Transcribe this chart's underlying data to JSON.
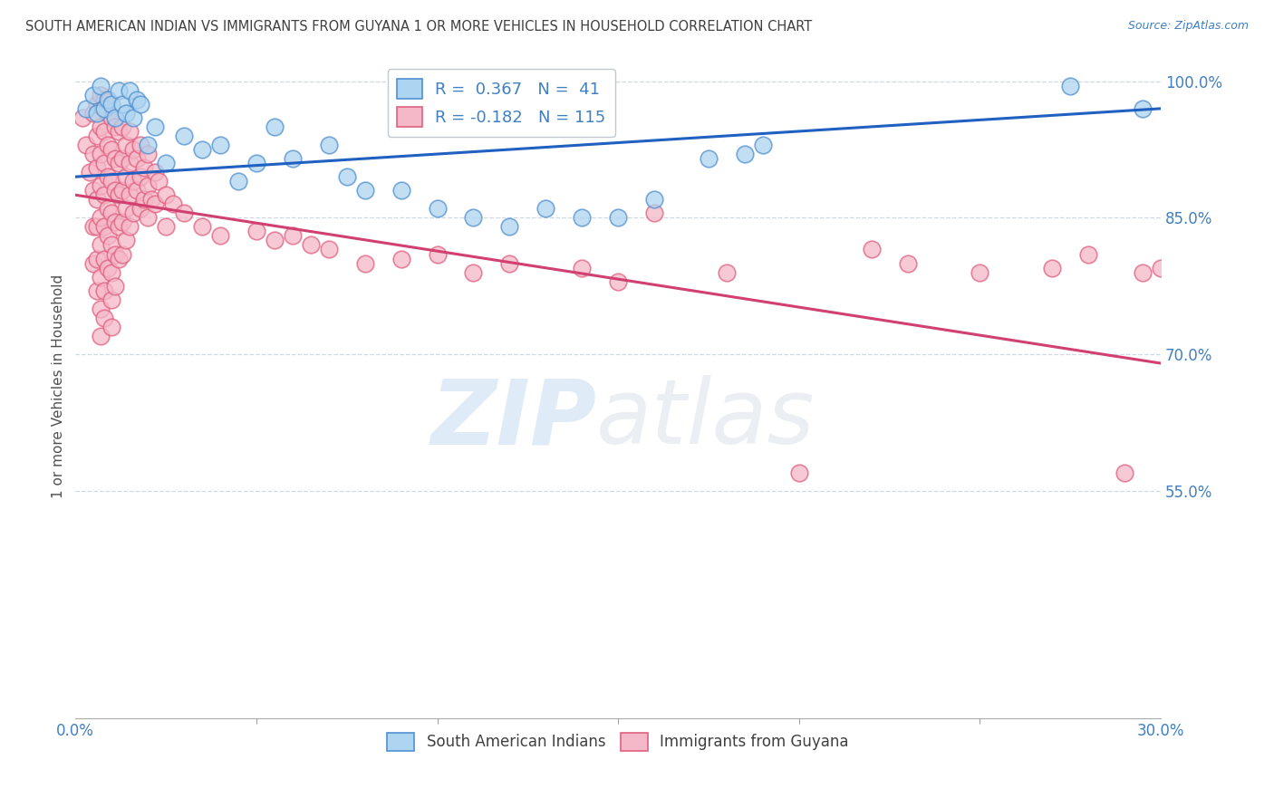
{
  "title": "SOUTH AMERICAN INDIAN VS IMMIGRANTS FROM GUYANA 1 OR MORE VEHICLES IN HOUSEHOLD CORRELATION CHART",
  "source": "Source: ZipAtlas.com",
  "ylabel_label": "1 or more Vehicles in Household",
  "legend_blue_label": "South American Indians",
  "legend_pink_label": "Immigrants from Guyana",
  "R_blue": 0.367,
  "N_blue": 41,
  "R_pink": -0.182,
  "N_pink": 115,
  "blue_color": "#ADD4F0",
  "pink_color": "#F5B8C8",
  "blue_edge_color": "#5090D0",
  "pink_edge_color": "#E06080",
  "blue_line_color": "#2060C0",
  "pink_line_color": "#D04070",
  "title_color": "#404040",
  "axis_label_color": "#4080C0",
  "xmin": 0.0,
  "xmax": 30.0,
  "ymin": 30.0,
  "ymax": 103.0,
  "y_tick_vals": [
    55.0,
    70.0,
    85.0,
    100.0
  ],
  "blue_line_x": [
    0.0,
    30.0
  ],
  "blue_line_y": [
    89.5,
    97.0
  ],
  "pink_line_x": [
    0.0,
    30.0
  ],
  "pink_line_y": [
    87.5,
    69.0
  ],
  "blue_points": [
    [
      0.3,
      97.0
    ],
    [
      0.5,
      98.5
    ],
    [
      0.6,
      96.5
    ],
    [
      0.7,
      99.5
    ],
    [
      0.8,
      97.0
    ],
    [
      0.9,
      98.0
    ],
    [
      1.0,
      97.5
    ],
    [
      1.1,
      96.0
    ],
    [
      1.2,
      99.0
    ],
    [
      1.3,
      97.5
    ],
    [
      1.4,
      96.5
    ],
    [
      1.5,
      99.0
    ],
    [
      1.6,
      96.0
    ],
    [
      1.7,
      98.0
    ],
    [
      1.8,
      97.5
    ],
    [
      2.0,
      93.0
    ],
    [
      2.2,
      95.0
    ],
    [
      2.5,
      91.0
    ],
    [
      3.0,
      94.0
    ],
    [
      3.5,
      92.5
    ],
    [
      4.0,
      93.0
    ],
    [
      4.5,
      89.0
    ],
    [
      5.0,
      91.0
    ],
    [
      5.5,
      95.0
    ],
    [
      6.0,
      91.5
    ],
    [
      7.0,
      93.0
    ],
    [
      7.5,
      89.5
    ],
    [
      8.0,
      88.0
    ],
    [
      9.0,
      88.0
    ],
    [
      10.0,
      86.0
    ],
    [
      11.0,
      85.0
    ],
    [
      12.0,
      84.0
    ],
    [
      13.0,
      86.0
    ],
    [
      14.0,
      85.0
    ],
    [
      15.0,
      85.0
    ],
    [
      16.0,
      87.0
    ],
    [
      17.5,
      91.5
    ],
    [
      18.5,
      92.0
    ],
    [
      19.0,
      93.0
    ],
    [
      27.5,
      99.5
    ],
    [
      29.5,
      97.0
    ]
  ],
  "pink_points": [
    [
      0.2,
      96.0
    ],
    [
      0.3,
      93.0
    ],
    [
      0.4,
      90.0
    ],
    [
      0.5,
      96.5
    ],
    [
      0.5,
      92.0
    ],
    [
      0.5,
      88.0
    ],
    [
      0.5,
      84.0
    ],
    [
      0.5,
      80.0
    ],
    [
      0.6,
      97.5
    ],
    [
      0.6,
      94.0
    ],
    [
      0.6,
      90.5
    ],
    [
      0.6,
      87.0
    ],
    [
      0.6,
      84.0
    ],
    [
      0.6,
      80.5
    ],
    [
      0.6,
      77.0
    ],
    [
      0.7,
      98.5
    ],
    [
      0.7,
      95.0
    ],
    [
      0.7,
      92.0
    ],
    [
      0.7,
      88.5
    ],
    [
      0.7,
      85.0
    ],
    [
      0.7,
      82.0
    ],
    [
      0.7,
      78.5
    ],
    [
      0.7,
      75.0
    ],
    [
      0.7,
      72.0
    ],
    [
      0.8,
      98.0
    ],
    [
      0.8,
      94.5
    ],
    [
      0.8,
      91.0
    ],
    [
      0.8,
      87.5
    ],
    [
      0.8,
      84.0
    ],
    [
      0.8,
      80.5
    ],
    [
      0.8,
      77.0
    ],
    [
      0.8,
      74.0
    ],
    [
      0.9,
      96.5
    ],
    [
      0.9,
      93.0
    ],
    [
      0.9,
      89.5
    ],
    [
      0.9,
      86.0
    ],
    [
      0.9,
      83.0
    ],
    [
      0.9,
      79.5
    ],
    [
      1.0,
      96.0
    ],
    [
      1.0,
      92.5
    ],
    [
      1.0,
      89.0
    ],
    [
      1.0,
      85.5
    ],
    [
      1.0,
      82.0
    ],
    [
      1.0,
      79.0
    ],
    [
      1.0,
      76.0
    ],
    [
      1.0,
      73.0
    ],
    [
      1.1,
      95.0
    ],
    [
      1.1,
      91.5
    ],
    [
      1.1,
      88.0
    ],
    [
      1.1,
      84.5
    ],
    [
      1.1,
      81.0
    ],
    [
      1.1,
      77.5
    ],
    [
      1.2,
      94.5
    ],
    [
      1.2,
      91.0
    ],
    [
      1.2,
      87.5
    ],
    [
      1.2,
      84.0
    ],
    [
      1.2,
      80.5
    ],
    [
      1.3,
      95.0
    ],
    [
      1.3,
      91.5
    ],
    [
      1.3,
      88.0
    ],
    [
      1.3,
      84.5
    ],
    [
      1.3,
      81.0
    ],
    [
      1.4,
      93.0
    ],
    [
      1.4,
      89.5
    ],
    [
      1.4,
      86.0
    ],
    [
      1.4,
      82.5
    ],
    [
      1.5,
      94.5
    ],
    [
      1.5,
      91.0
    ],
    [
      1.5,
      87.5
    ],
    [
      1.5,
      84.0
    ],
    [
      1.6,
      92.5
    ],
    [
      1.6,
      89.0
    ],
    [
      1.6,
      85.5
    ],
    [
      1.7,
      91.5
    ],
    [
      1.7,
      88.0
    ],
    [
      1.8,
      93.0
    ],
    [
      1.8,
      89.5
    ],
    [
      1.8,
      86.0
    ],
    [
      1.9,
      90.5
    ],
    [
      1.9,
      87.0
    ],
    [
      2.0,
      92.0
    ],
    [
      2.0,
      88.5
    ],
    [
      2.0,
      85.0
    ],
    [
      2.1,
      87.0
    ],
    [
      2.2,
      90.0
    ],
    [
      2.2,
      86.5
    ],
    [
      2.3,
      89.0
    ],
    [
      2.5,
      87.5
    ],
    [
      2.5,
      84.0
    ],
    [
      2.7,
      86.5
    ],
    [
      3.0,
      85.5
    ],
    [
      3.5,
      84.0
    ],
    [
      4.0,
      83.0
    ],
    [
      5.0,
      83.5
    ],
    [
      5.5,
      82.5
    ],
    [
      6.5,
      82.0
    ],
    [
      7.0,
      81.5
    ],
    [
      8.0,
      80.0
    ],
    [
      9.0,
      80.5
    ],
    [
      10.0,
      81.0
    ],
    [
      12.0,
      80.0
    ],
    [
      14.0,
      79.5
    ],
    [
      16.0,
      85.5
    ],
    [
      20.0,
      57.0
    ],
    [
      22.0,
      81.5
    ],
    [
      25.0,
      79.0
    ],
    [
      27.0,
      79.5
    ],
    [
      28.0,
      81.0
    ],
    [
      29.0,
      57.0
    ],
    [
      29.5,
      79.0
    ],
    [
      30.0,
      79.5
    ],
    [
      6.0,
      83.0
    ],
    [
      11.0,
      79.0
    ],
    [
      15.0,
      78.0
    ],
    [
      18.0,
      79.0
    ],
    [
      23.0,
      80.0
    ]
  ]
}
